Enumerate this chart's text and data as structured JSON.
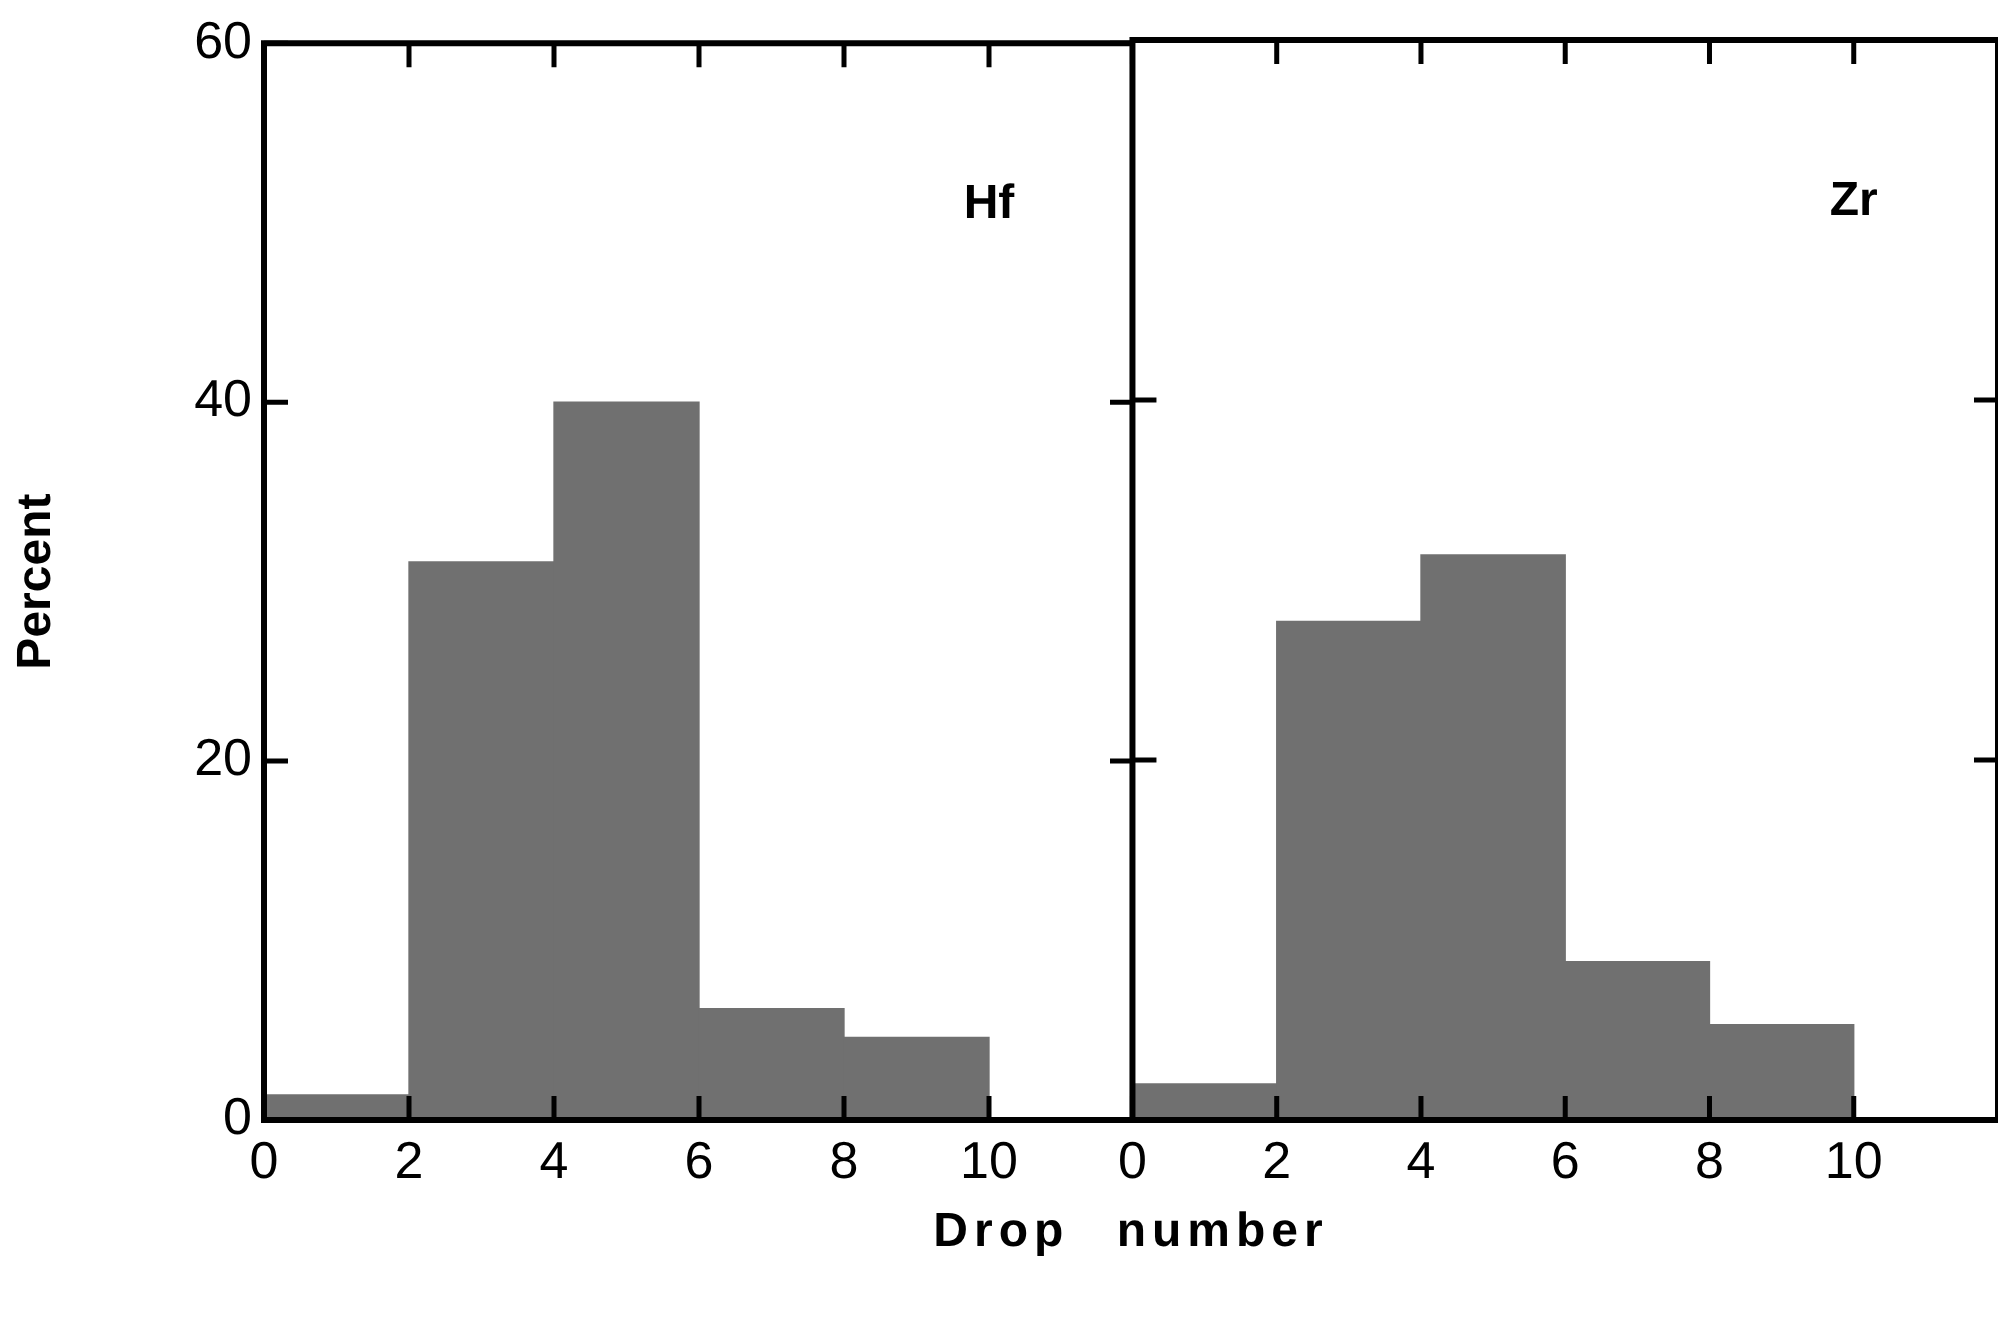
{
  "chart_data": [
    {
      "type": "histogram",
      "title": "Hf",
      "ylabel": "Percent",
      "xlabel": "Drop number",
      "bins": [
        0,
        2,
        4,
        6,
        8,
        10
      ],
      "values": [
        1.4,
        31.1,
        40,
        6.2,
        4.6
      ],
      "color": "#707070",
      "xlim": [
        0,
        12
      ],
      "xticks": [
        0,
        2,
        4,
        6,
        8,
        10
      ],
      "ylim": [
        0,
        60
      ],
      "yticks": [
        0,
        20,
        40,
        60
      ],
      "grid": false,
      "legend": false
    },
    {
      "type": "histogram",
      "title": "Zr",
      "bins": [
        0,
        2,
        4,
        6,
        8,
        10
      ],
      "values": [
        2.0,
        27.7,
        31.4,
        8.8,
        5.3
      ],
      "color": "#707070",
      "xlim": [
        0,
        12
      ],
      "xticks": [
        0,
        2,
        4,
        6,
        8,
        10
      ],
      "ylim": [
        0,
        60
      ],
      "yticks": [
        0,
        20,
        40,
        60
      ],
      "tick_labels": "x",
      "grid": false,
      "legend": false
    }
  ]
}
